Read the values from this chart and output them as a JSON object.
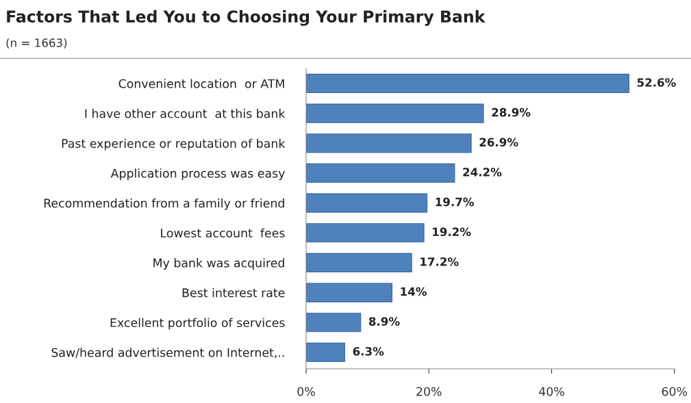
{
  "chart_data": {
    "type": "bar",
    "orientation": "horizontal",
    "title": "Factors That Led You to Choosing Your Primary Bank",
    "subtitle": "(n = 1663)",
    "categories": [
      "Convenient location  or ATM",
      "I have other account  at this bank",
      "Past experience or reputation of bank",
      "Application process was easy",
      "Recommendation from a family or friend",
      "Lowest account  fees",
      "My bank was acquired",
      "Best interest rate",
      "Excellent portfolio of services",
      "Saw/heard advertisement on Internet,.."
    ],
    "values": [
      52.6,
      28.9,
      26.9,
      24.2,
      19.7,
      19.2,
      17.2,
      14,
      8.9,
      6.3
    ],
    "value_labels": [
      "52.6%",
      "28.9%",
      "26.9%",
      "24.2%",
      "19.7%",
      "19.2%",
      "17.2%",
      "14%",
      "8.9%",
      "6.3%"
    ],
    "color": "#4f81bd",
    "xlim": [
      0,
      60
    ],
    "xticks": [
      {
        "value": 0,
        "label": "0%"
      },
      {
        "value": 20,
        "label": "20%"
      },
      {
        "value": 40,
        "label": "40%"
      },
      {
        "value": 60,
        "label": "60%"
      }
    ],
    "grid": false,
    "legend": false
  }
}
